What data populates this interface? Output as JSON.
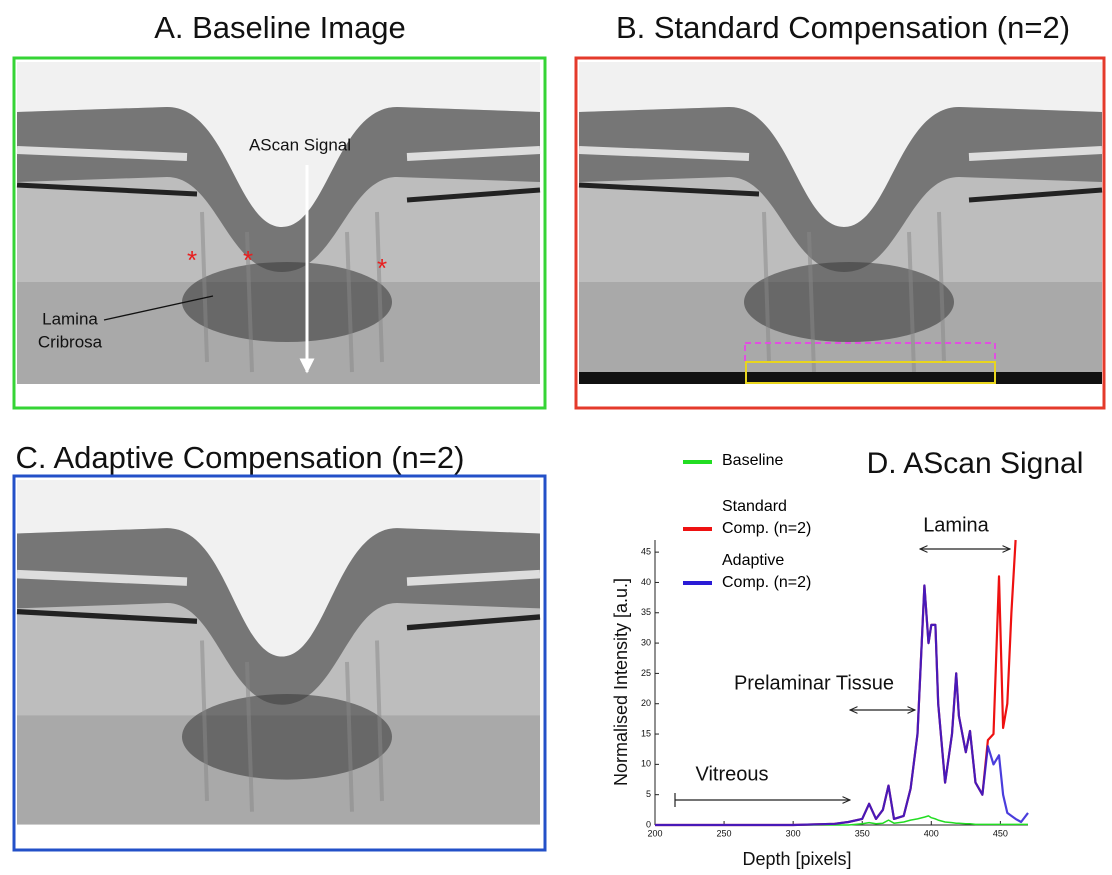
{
  "panels": {
    "a": {
      "title": "A. Baseline Image",
      "ascan_label": "AScan Signal",
      "lamina_label": [
        "Lamina",
        "Cribrosa"
      ],
      "markers": [
        "*",
        "*",
        "*"
      ]
    },
    "b": {
      "title": "B. Standard Compensation (n=2)"
    },
    "c": {
      "title": "C. Adaptive Compensation (n=2)"
    }
  },
  "chart_data": {
    "type": "line",
    "title": "D. AScan Signal",
    "x_label": "Depth [pixels]",
    "y_label": "Normalised Intensity [a.u.]",
    "x": [
      200,
      250,
      300,
      330,
      340,
      350,
      355,
      360,
      365,
      369,
      373,
      380,
      385,
      390,
      395,
      398,
      400,
      403,
      405,
      410,
      415,
      418,
      420,
      425,
      428,
      432,
      437,
      441,
      445,
      449,
      452,
      455,
      458,
      461,
      465,
      470
    ],
    "series": [
      {
        "name": "Baseline",
        "color": "#22dd22",
        "values": [
          0,
          0,
          0,
          0,
          0,
          0.2,
          0.4,
          0.2,
          0.3,
          0.8,
          0.3,
          0.5,
          0.8,
          1,
          1.3,
          1.5,
          1.2,
          1,
          0.8,
          0.5,
          0.4,
          0.3,
          0.3,
          0.2,
          0.2,
          0.1,
          0.1,
          0.1,
          0.1,
          0.1,
          0.1,
          0.1,
          0.1,
          0.1,
          0.1,
          0.1
        ]
      },
      {
        "name": "Standard Comp. (n=2)",
        "color": "#ee1111",
        "values": [
          0,
          0,
          0,
          0.2,
          0.5,
          1,
          3.5,
          1,
          2.5,
          6.5,
          1,
          1.5,
          6,
          15,
          39.5,
          30,
          33,
          33,
          20,
          7,
          15,
          25,
          18,
          12,
          15.5,
          7,
          5,
          14,
          15,
          41,
          16,
          20,
          35,
          47,
          null,
          null
        ]
      },
      {
        "name": "Adaptive Comp. (n=2)",
        "color": "#2a1bd6",
        "values": [
          0,
          0,
          0,
          0.2,
          0.5,
          1,
          3.5,
          1,
          2.5,
          6.5,
          1,
          1.5,
          6,
          15,
          39.5,
          30,
          33,
          33,
          20,
          7,
          15,
          25,
          18,
          12,
          15.5,
          7,
          5,
          13,
          10,
          11.5,
          5,
          2,
          1.5,
          1,
          0.5,
          2
        ]
      }
    ],
    "xlim": [
      200,
      470
    ],
    "ylim": [
      0,
      47
    ],
    "xticks": [
      200,
      250,
      300,
      350,
      400,
      450
    ],
    "yticks": [
      0,
      5,
      10,
      15,
      20,
      25,
      30,
      35,
      40,
      45
    ],
    "annotations": [
      "Lamina",
      "Prelaminar Tissue",
      "Vitreous"
    ],
    "legend": "upper left"
  }
}
